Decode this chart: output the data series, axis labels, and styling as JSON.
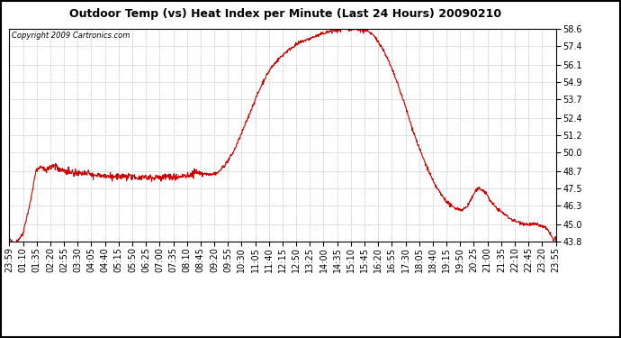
{
  "title": "Outdoor Temp (vs) Heat Index per Minute (Last 24 Hours) 20090210",
  "copyright": "Copyright 2009 Cartronics.com",
  "line_color": "#cc0000",
  "bg_color": "#ffffff",
  "plot_bg_color": "#ffffff",
  "grid_color": "#b0b0b0",
  "border_color": "#000000",
  "ylim": [
    43.8,
    58.6
  ],
  "yticks": [
    43.8,
    45.0,
    46.3,
    47.5,
    48.7,
    50.0,
    51.2,
    52.4,
    53.7,
    54.9,
    56.1,
    57.4,
    58.6
  ],
  "xtick_labels": [
    "23:59",
    "01:10",
    "01:35",
    "02:20",
    "02:55",
    "03:30",
    "04:05",
    "04:40",
    "05:15",
    "05:50",
    "06:25",
    "07:00",
    "07:35",
    "08:10",
    "08:45",
    "09:20",
    "09:55",
    "10:30",
    "11:05",
    "11:40",
    "12:15",
    "12:50",
    "13:25",
    "14:00",
    "14:35",
    "15:10",
    "15:45",
    "16:20",
    "16:55",
    "17:30",
    "18:05",
    "18:40",
    "19:15",
    "19:50",
    "20:25",
    "21:00",
    "21:35",
    "22:10",
    "22:45",
    "23:20",
    "23:55"
  ],
  "n_points": 1441,
  "line_width": 0.8,
  "title_fontsize": 9,
  "tick_fontsize": 7,
  "copyright_fontsize": 6
}
